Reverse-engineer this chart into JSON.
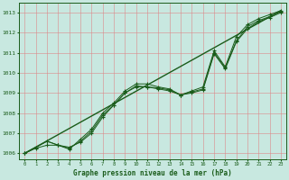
{
  "xlabel": "Graphe pression niveau de la mer (hPa)",
  "x": [
    0,
    1,
    2,
    3,
    4,
    5,
    6,
    7,
    8,
    9,
    10,
    11,
    12,
    13,
    14,
    15,
    16,
    17,
    18,
    19,
    20,
    21,
    22,
    23
  ],
  "line1": [
    1006.0,
    1006.3,
    1006.6,
    1006.4,
    1006.2,
    1006.7,
    1007.2,
    1008.0,
    1008.5,
    1009.1,
    1009.45,
    1009.45,
    1009.3,
    1009.2,
    1008.9,
    1009.1,
    1009.3,
    1011.1,
    1010.3,
    1011.8,
    1012.4,
    1012.7,
    1012.9,
    1013.1
  ],
  "line2": [
    1006.0,
    1006.3,
    1006.6,
    1006.4,
    1006.25,
    1006.6,
    1007.1,
    1007.9,
    1008.4,
    1009.0,
    1009.35,
    1009.3,
    1009.25,
    1009.15,
    1008.9,
    1009.05,
    1009.2,
    1011.0,
    1010.25,
    1011.6,
    1012.3,
    1012.6,
    1012.8,
    1013.05
  ],
  "line3": [
    1006.0,
    1006.25,
    1006.4,
    1006.4,
    1006.3,
    1006.55,
    1007.0,
    1007.8,
    1008.4,
    1009.0,
    1009.3,
    1009.3,
    1009.2,
    1009.1,
    1008.9,
    1009.0,
    1009.15,
    1010.95,
    1010.2,
    1011.55,
    1012.2,
    1012.55,
    1012.75,
    1013.0
  ],
  "straight_line": [
    [
      0,
      1006.0
    ],
    [
      23,
      1013.1
    ]
  ],
  "ylim_min": 1006.0,
  "ylim_max": 1013.5,
  "yticks": [
    1006,
    1007,
    1008,
    1009,
    1010,
    1011,
    1012,
    1013
  ],
  "xticks": [
    0,
    1,
    2,
    3,
    4,
    5,
    6,
    7,
    8,
    9,
    10,
    11,
    12,
    13,
    14,
    15,
    16,
    17,
    18,
    19,
    20,
    21,
    22,
    23
  ],
  "line_color": "#1a5c1a",
  "bg_color": "#c8e8e0",
  "grid_color_major": "#dd8888",
  "grid_color_minor": "#ddbbbb",
  "marker": "+",
  "marker_size": 3.5,
  "linewidth": 0.7
}
